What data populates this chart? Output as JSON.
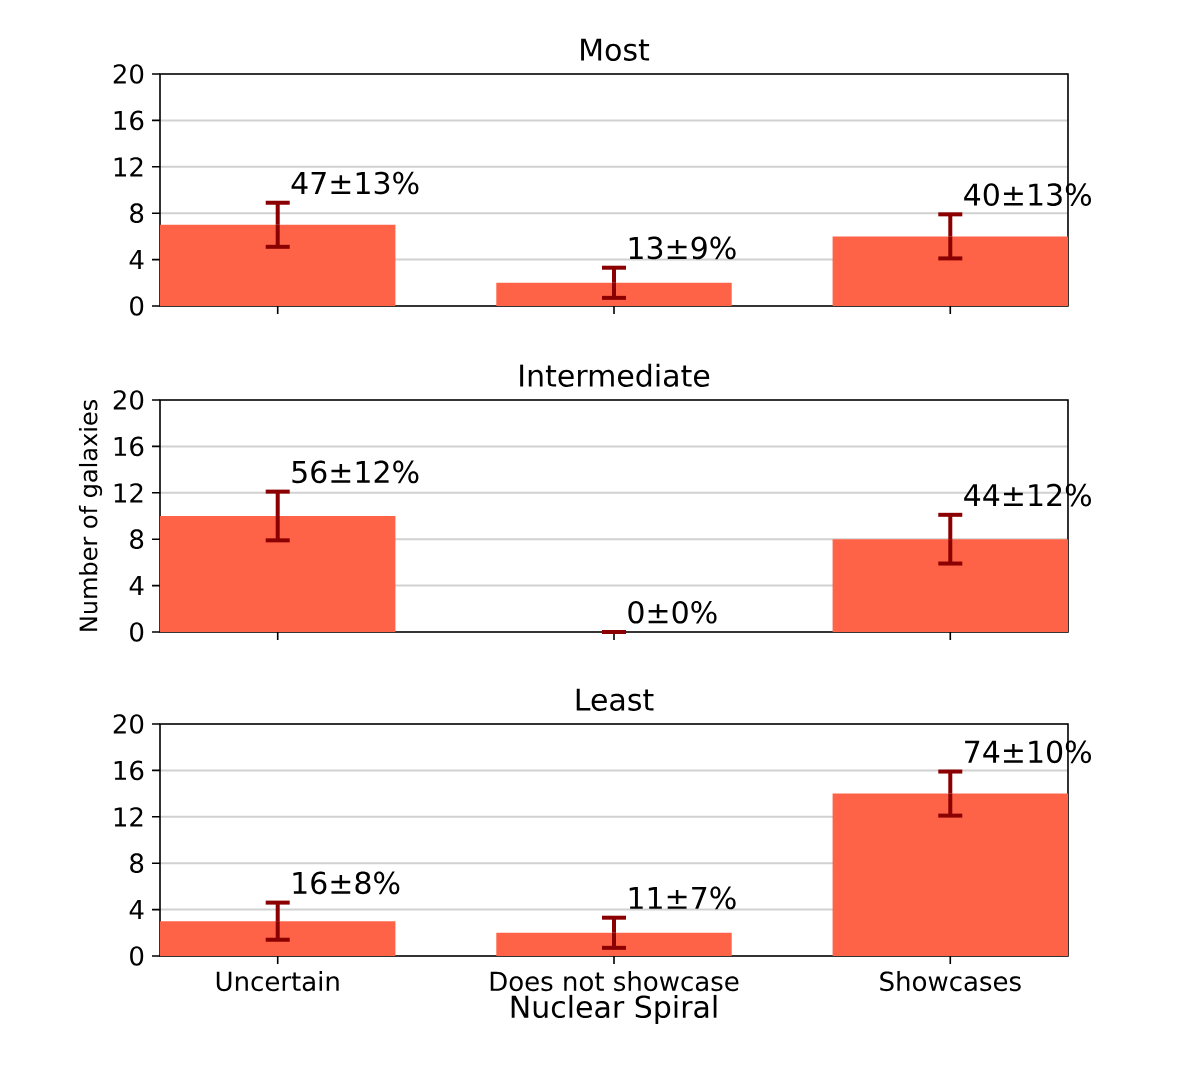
{
  "chart_data": [
    {
      "type": "bar",
      "title": "Most",
      "categories": [
        "Uncertain",
        "Does not showcase",
        "Showcases"
      ],
      "values": [
        7,
        2,
        6
      ],
      "errors": [
        1.9,
        1.3,
        1.9
      ],
      "color": "#ff6347",
      "ylim": [
        0,
        20
      ],
      "yticks": [
        0,
        4,
        8,
        12,
        16,
        20
      ],
      "grid": "y",
      "tick_labels": "y",
      "annotations": [
        {
          "text": "47±13%",
          "x": "Uncertain",
          "y": 8.9
        },
        {
          "text": "13±9%",
          "x": "Does not showcase",
          "y": 3.3
        },
        {
          "text": "40±13%",
          "x": "Showcases",
          "y": 7.9
        }
      ]
    },
    {
      "type": "bar",
      "title": "Intermediate",
      "ylabel": "Number of galaxies",
      "categories": [
        "Uncertain",
        "Does not showcase",
        "Showcases"
      ],
      "values": [
        10,
        0,
        8
      ],
      "errors": [
        2.1,
        0,
        2.1
      ],
      "color": "#ff6347",
      "ylim": [
        0,
        20
      ],
      "yticks": [
        0,
        4,
        8,
        12,
        16,
        20
      ],
      "grid": "y",
      "tick_labels": "y",
      "annotations": [
        {
          "text": "56±12%",
          "x": "Uncertain",
          "y": 12.1
        },
        {
          "text": "0±0%",
          "x": "Does not showcase",
          "y": 0
        },
        {
          "text": "44±12%",
          "x": "Showcases",
          "y": 10.1
        }
      ]
    },
    {
      "type": "bar",
      "title": "Least",
      "xlabel": "Nuclear Spiral",
      "categories": [
        "Uncertain",
        "Does not showcase",
        "Showcases"
      ],
      "values": [
        3,
        2,
        14
      ],
      "errors": [
        1.6,
        1.3,
        1.9
      ],
      "color": "#ff6347",
      "ylim": [
        0,
        20
      ],
      "yticks": [
        0,
        4,
        8,
        12,
        16,
        20
      ],
      "grid": "y",
      "annotations": [
        {
          "text": "16±8%",
          "x": "Uncertain",
          "y": 4.6
        },
        {
          "text": "11±7%",
          "x": "Does not showcase",
          "y": 3.3
        },
        {
          "text": "74±10%",
          "x": "Showcases",
          "y": 15.9
        }
      ]
    }
  ]
}
